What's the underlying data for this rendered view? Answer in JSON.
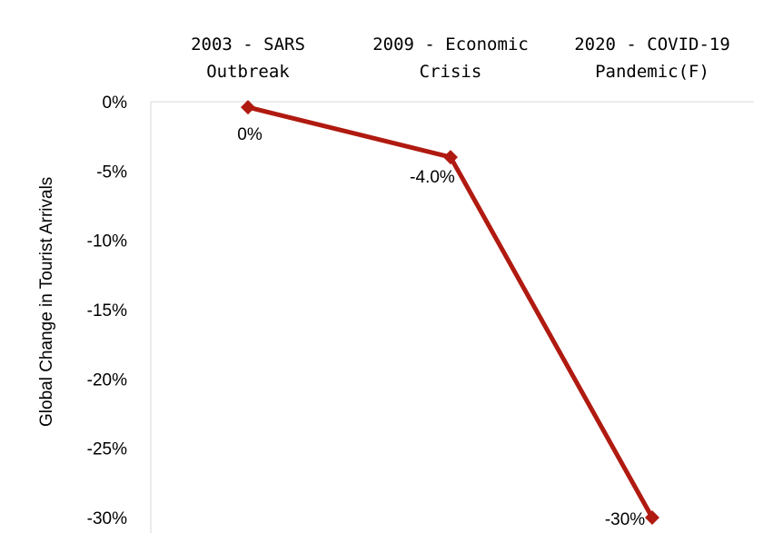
{
  "chart_data": {
    "type": "line",
    "categories": [
      [
        "2003 - SARS",
        "Outbreak"
      ],
      [
        "2009 -  Economic",
        "Crisis"
      ],
      [
        "2020 - COVID-19",
        "Pandemic(F)"
      ]
    ],
    "values": [
      -0.4,
      -4.0,
      -30.0
    ],
    "data_labels": [
      "0%",
      "-4.0%",
      "-30%"
    ],
    "ylabel": "Global  Change in Tourist Arrivals",
    "ylim": [
      -30,
      0
    ],
    "yticks": [
      0,
      -5,
      -10,
      -15,
      -20,
      -25,
      -30
    ],
    "ytick_labels": [
      "0%",
      "-5%",
      "-10%",
      "-15%",
      "-20%",
      "-25%",
      "-30%"
    ],
    "x_axis_position": "top",
    "grid": false,
    "legend": "none",
    "line_color": "#B01A10",
    "axis_color": "#D9D9D9"
  }
}
